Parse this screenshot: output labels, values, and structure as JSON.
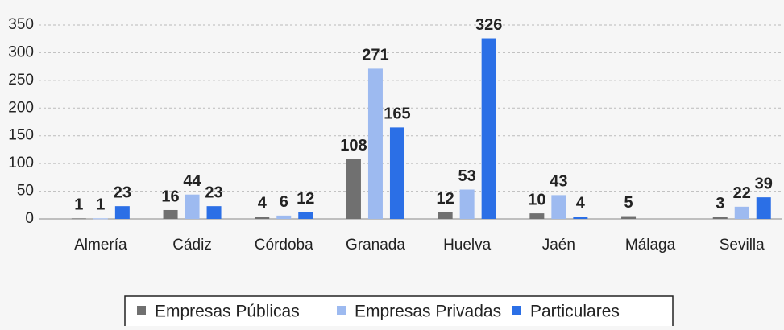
{
  "chart_data": {
    "type": "bar",
    "categories": [
      "Almería",
      "Cádiz",
      "Córdoba",
      "Granada",
      "Huelva",
      "Jaén",
      "Málaga",
      "Sevilla"
    ],
    "series": [
      {
        "name": "Empresas Públicas",
        "color": "#707070",
        "values": [
          1,
          16,
          4,
          108,
          12,
          10,
          5,
          3
        ]
      },
      {
        "name": "Empresas Privadas",
        "color": "#9dbaf0",
        "values": [
          1,
          44,
          6,
          271,
          53,
          43,
          null,
          22
        ]
      },
      {
        "name": "Particulares",
        "color": "#2b6fe6",
        "values": [
          23,
          23,
          12,
          165,
          326,
          4,
          null,
          39
        ]
      }
    ],
    "ylim": [
      0,
      350
    ],
    "yticks": [
      0,
      50,
      100,
      150,
      200,
      250,
      300,
      350
    ],
    "grid": true,
    "legend": "bottom"
  }
}
